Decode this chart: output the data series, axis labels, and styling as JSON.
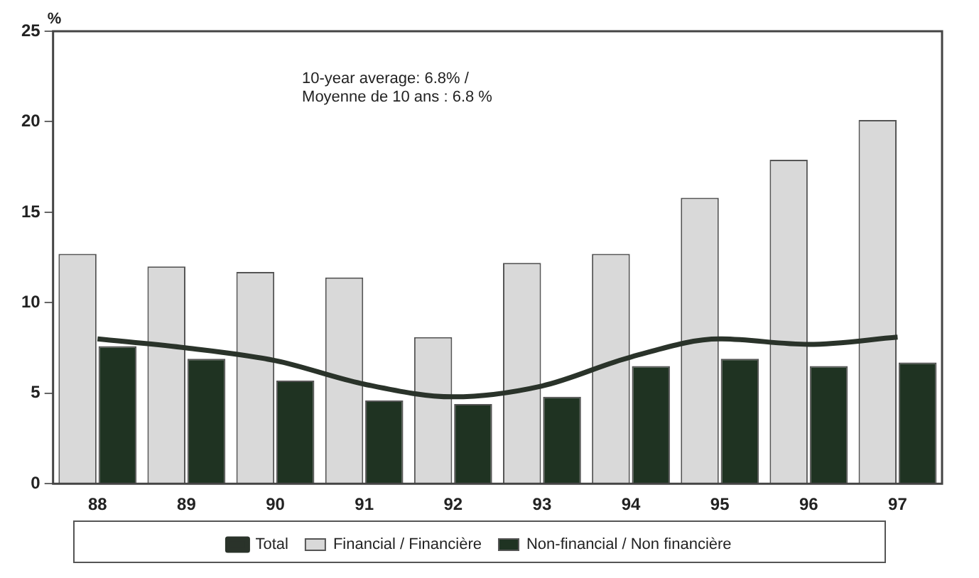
{
  "chart_data": {
    "type": "bar",
    "ylabel": "%",
    "categories": [
      "88",
      "89",
      "90",
      "91",
      "92",
      "93",
      "94",
      "95",
      "96",
      "97"
    ],
    "series": [
      {
        "name": "Financial / Financière",
        "color": "#d9d9d9",
        "values": [
          12.7,
          12.0,
          11.7,
          11.4,
          8.1,
          12.2,
          12.7,
          15.8,
          17.9,
          20.1
        ]
      },
      {
        "name": "Non-financial / Non financière",
        "color": "#1f3322",
        "values": [
          7.6,
          6.9,
          5.7,
          4.6,
          4.4,
          4.8,
          6.5,
          6.9,
          6.5,
          6.7
        ]
      },
      {
        "name": "Total",
        "type": "line",
        "color": "#2a332a",
        "values": [
          8.0,
          7.5,
          6.8,
          5.5,
          4.8,
          5.4,
          7.0,
          8.0,
          7.7,
          8.1
        ]
      }
    ],
    "ylim": [
      0,
      25
    ],
    "yticks": [
      0,
      5,
      10,
      15,
      20,
      25
    ],
    "grid": false,
    "legend": "bottom",
    "marker": "none",
    "annotations": [
      "10-year average: 6.8% /\nMoyenne de 10 ans : 6.8 %"
    ]
  }
}
